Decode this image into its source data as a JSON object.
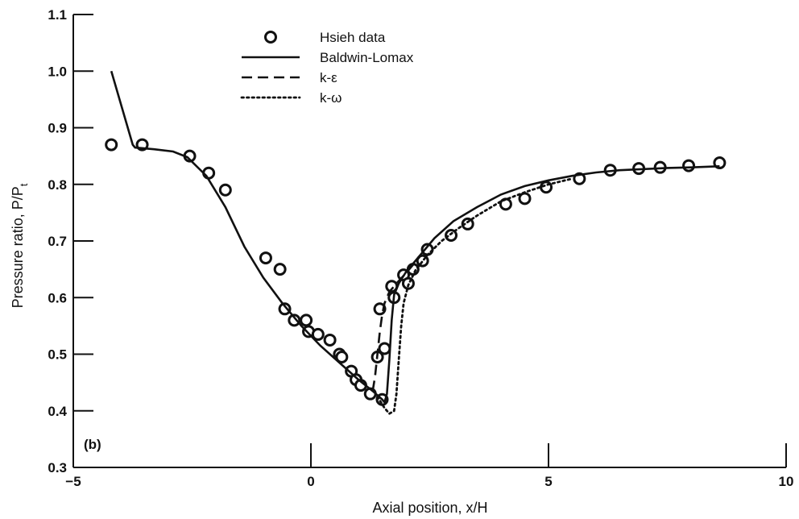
{
  "chart_data": {
    "type": "line",
    "panel_label": "(b)",
    "xlabel": "Axial position, x/H",
    "ylabel": "Pressure ratio, P/P",
    "ylabel_subscript": "t",
    "xlim": [
      -5,
      10
    ],
    "ylim": [
      0.3,
      1.1
    ],
    "xticks": [
      -5,
      0,
      5,
      10
    ],
    "xtick_labels": [
      "−5",
      "0",
      "5",
      "10"
    ],
    "yticks": [
      0.3,
      0.4,
      0.5,
      0.6,
      0.7,
      0.8,
      0.9,
      1.0,
      1.1
    ],
    "ytick_labels": [
      "0.3",
      "0.4",
      "0.5",
      "0.6",
      "0.7",
      "0.8",
      "0.9",
      "1.0",
      "1.1"
    ],
    "grid": false,
    "legend_position": "top-center",
    "series": [
      {
        "name": "Hsieh data",
        "style": "markers",
        "x": [
          -4.2,
          -3.55,
          -2.55,
          -2.15,
          -1.8,
          -0.95,
          -0.65,
          -0.55,
          -0.35,
          -0.1,
          -0.05,
          0.15,
          0.4,
          0.6,
          0.65,
          0.85,
          0.95,
          1.05,
          1.25,
          1.4,
          1.45,
          1.5,
          1.55,
          1.7,
          1.75,
          1.95,
          2.05,
          2.15,
          2.35,
          2.45,
          2.95,
          3.3,
          4.1,
          4.5,
          4.95,
          5.65,
          6.3,
          6.9,
          7.35,
          7.95,
          8.6
        ],
        "y": [
          0.87,
          0.87,
          0.85,
          0.82,
          0.79,
          0.67,
          0.65,
          0.58,
          0.56,
          0.56,
          0.54,
          0.535,
          0.525,
          0.5,
          0.495,
          0.47,
          0.455,
          0.445,
          0.43,
          0.495,
          0.58,
          0.42,
          0.51,
          0.62,
          0.6,
          0.64,
          0.625,
          0.65,
          0.665,
          0.685,
          0.71,
          0.73,
          0.765,
          0.775,
          0.795,
          0.81,
          0.825,
          0.828,
          0.83,
          0.833,
          0.838
        ]
      },
      {
        "name": "Baldwin-Lomax",
        "style": "solid",
        "x": [
          -4.2,
          -3.75,
          -3.7,
          -3.3,
          -2.9,
          -2.6,
          -2.2,
          -1.8,
          -1.4,
          -1.0,
          -0.6,
          -0.2,
          0.2,
          0.6,
          1.0,
          1.3,
          1.5,
          1.55,
          1.6,
          1.65,
          1.7,
          1.75,
          1.85,
          2.0,
          2.3,
          2.6,
          3.0,
          3.5,
          4.0,
          4.5,
          5.0,
          5.5,
          6.0,
          6.5,
          7.0,
          7.5,
          8.0,
          8.6
        ],
        "y": [
          1.0,
          0.87,
          0.865,
          0.862,
          0.858,
          0.848,
          0.815,
          0.76,
          0.69,
          0.635,
          0.59,
          0.55,
          0.515,
          0.485,
          0.455,
          0.435,
          0.42,
          0.415,
          0.43,
          0.49,
          0.56,
          0.605,
          0.625,
          0.645,
          0.675,
          0.705,
          0.735,
          0.76,
          0.782,
          0.797,
          0.807,
          0.815,
          0.821,
          0.825,
          0.827,
          0.829,
          0.83,
          0.832
        ]
      },
      {
        "name": "k-ε",
        "style": "dashed",
        "x": [
          1.3,
          1.35,
          1.4,
          1.45,
          1.5,
          1.55,
          1.65,
          1.8,
          2.0,
          2.3
        ],
        "y": [
          0.435,
          0.46,
          0.5,
          0.54,
          0.57,
          0.59,
          0.61,
          0.625,
          0.643,
          0.673
        ]
      },
      {
        "name": "k-ω",
        "style": "dotted",
        "x": [
          1.4,
          1.55,
          1.65,
          1.75,
          1.8,
          1.85,
          1.9,
          1.95,
          2.05,
          2.2,
          2.45,
          2.75,
          3.1,
          3.5,
          4.0,
          4.5,
          5.0,
          5.5
        ],
        "y": [
          0.425,
          0.405,
          0.395,
          0.4,
          0.43,
          0.49,
          0.55,
          0.59,
          0.622,
          0.648,
          0.675,
          0.7,
          0.722,
          0.745,
          0.77,
          0.786,
          0.8,
          0.81
        ]
      }
    ]
  }
}
